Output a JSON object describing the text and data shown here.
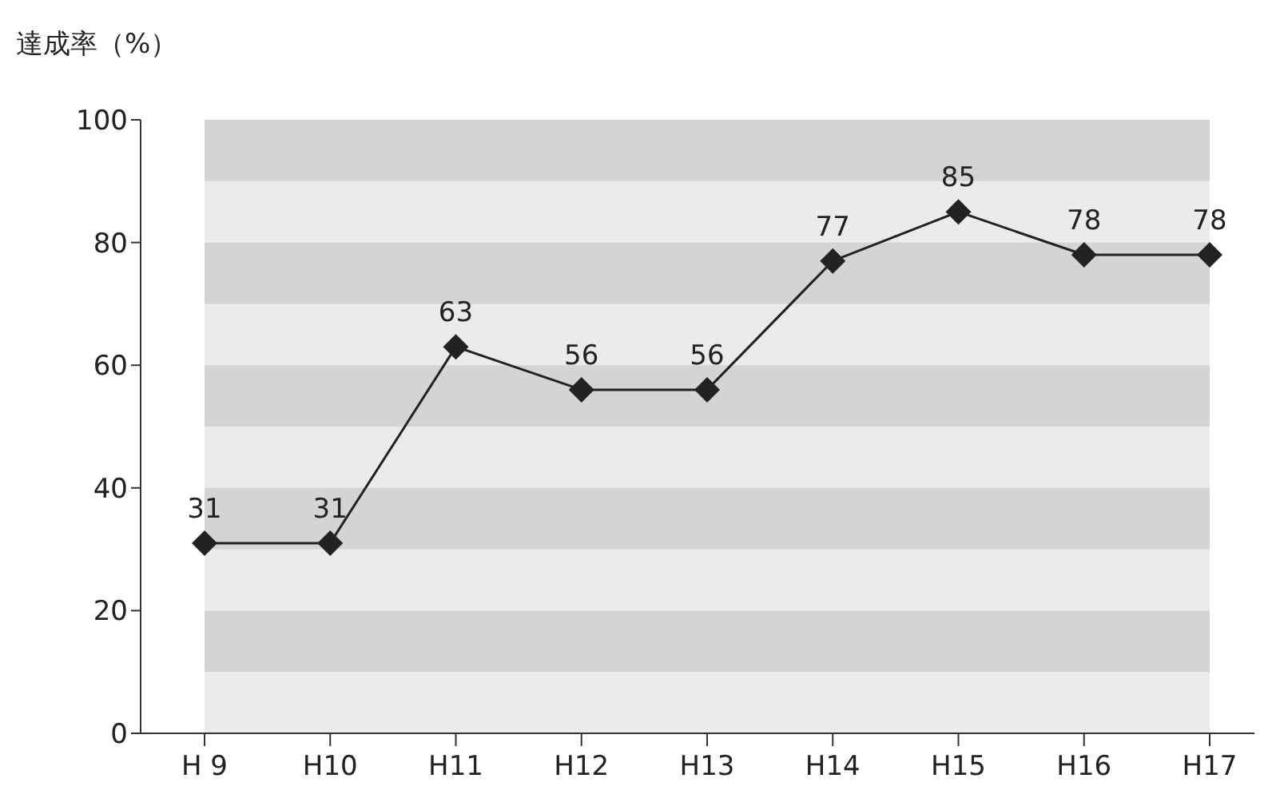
{
  "chart_data": {
    "type": "line",
    "ylabel": "達成率（%）",
    "categories": [
      "H 9",
      "H10",
      "H11",
      "H12",
      "H13",
      "H14",
      "H15",
      "H16",
      "H17"
    ],
    "series": [
      {
        "color": "#222222",
        "values": [
          31,
          31,
          63,
          56,
          56,
          77,
          85,
          78,
          78
        ]
      }
    ],
    "ylim": [
      0,
      100
    ],
    "yticks": [
      0,
      20,
      40,
      60,
      80,
      100
    ],
    "bands": [
      {
        "axis": "y",
        "from": 10,
        "to": 20,
        "color": "#d4d4d4"
      },
      {
        "axis": "y",
        "from": 30,
        "to": 40,
        "color": "#d4d4d4"
      },
      {
        "axis": "y",
        "from": 50,
        "to": 60,
        "color": "#d4d4d4"
      },
      {
        "axis": "y",
        "from": 70,
        "to": 80,
        "color": "#d4d4d4"
      },
      {
        "axis": "y",
        "from": 90,
        "to": 100,
        "color": "#d4d4d4"
      }
    ],
    "marker": "diamond",
    "line_style": "solid",
    "data_labels": true,
    "legend": false
  }
}
